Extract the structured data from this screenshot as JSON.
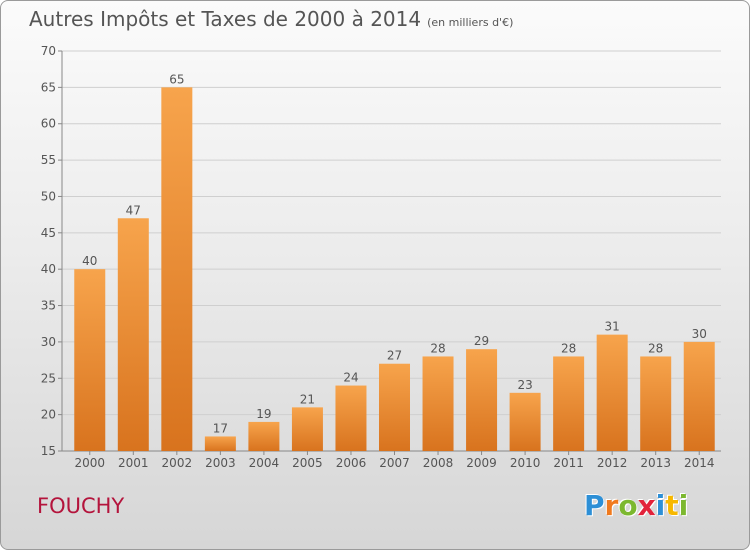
{
  "title": "Autres Impôts et Taxes de 2000 à 2014",
  "subtitle": "(en milliers d'€)",
  "town": "FOUCHY",
  "logo": {
    "letters": [
      "P",
      "r",
      "o",
      "x",
      "i",
      "t",
      "i"
    ],
    "colors": [
      "#2d8fd6",
      "#f07a1e",
      "#7cb82f",
      "#e2223a",
      "#2d8fd6",
      "#f7b800",
      "#7cb82f"
    ]
  },
  "colors": {
    "bar_top": "#f7a44c",
    "bar_bottom": "#d8731e",
    "text": "#555555",
    "town": "#b4143c"
  },
  "chart_data": {
    "type": "bar",
    "categories": [
      "2000",
      "2001",
      "2002",
      "2003",
      "2004",
      "2005",
      "2006",
      "2007",
      "2008",
      "2009",
      "2010",
      "2011",
      "2012",
      "2013",
      "2014"
    ],
    "values": [
      40,
      47,
      65,
      17,
      19,
      21,
      24,
      27,
      28,
      29,
      23,
      28,
      31,
      28,
      30
    ],
    "value_labels": [
      "40",
      "47",
      "65",
      "17",
      "19",
      "21",
      "24",
      "27",
      "28",
      "29",
      "23",
      "28",
      "31",
      "28",
      "30"
    ],
    "ylim": [
      15,
      70
    ],
    "yticks": [
      "15",
      "20",
      "25",
      "30",
      "35",
      "40",
      "45",
      "50",
      "55",
      "60",
      "65",
      "70"
    ],
    "grid": true
  }
}
